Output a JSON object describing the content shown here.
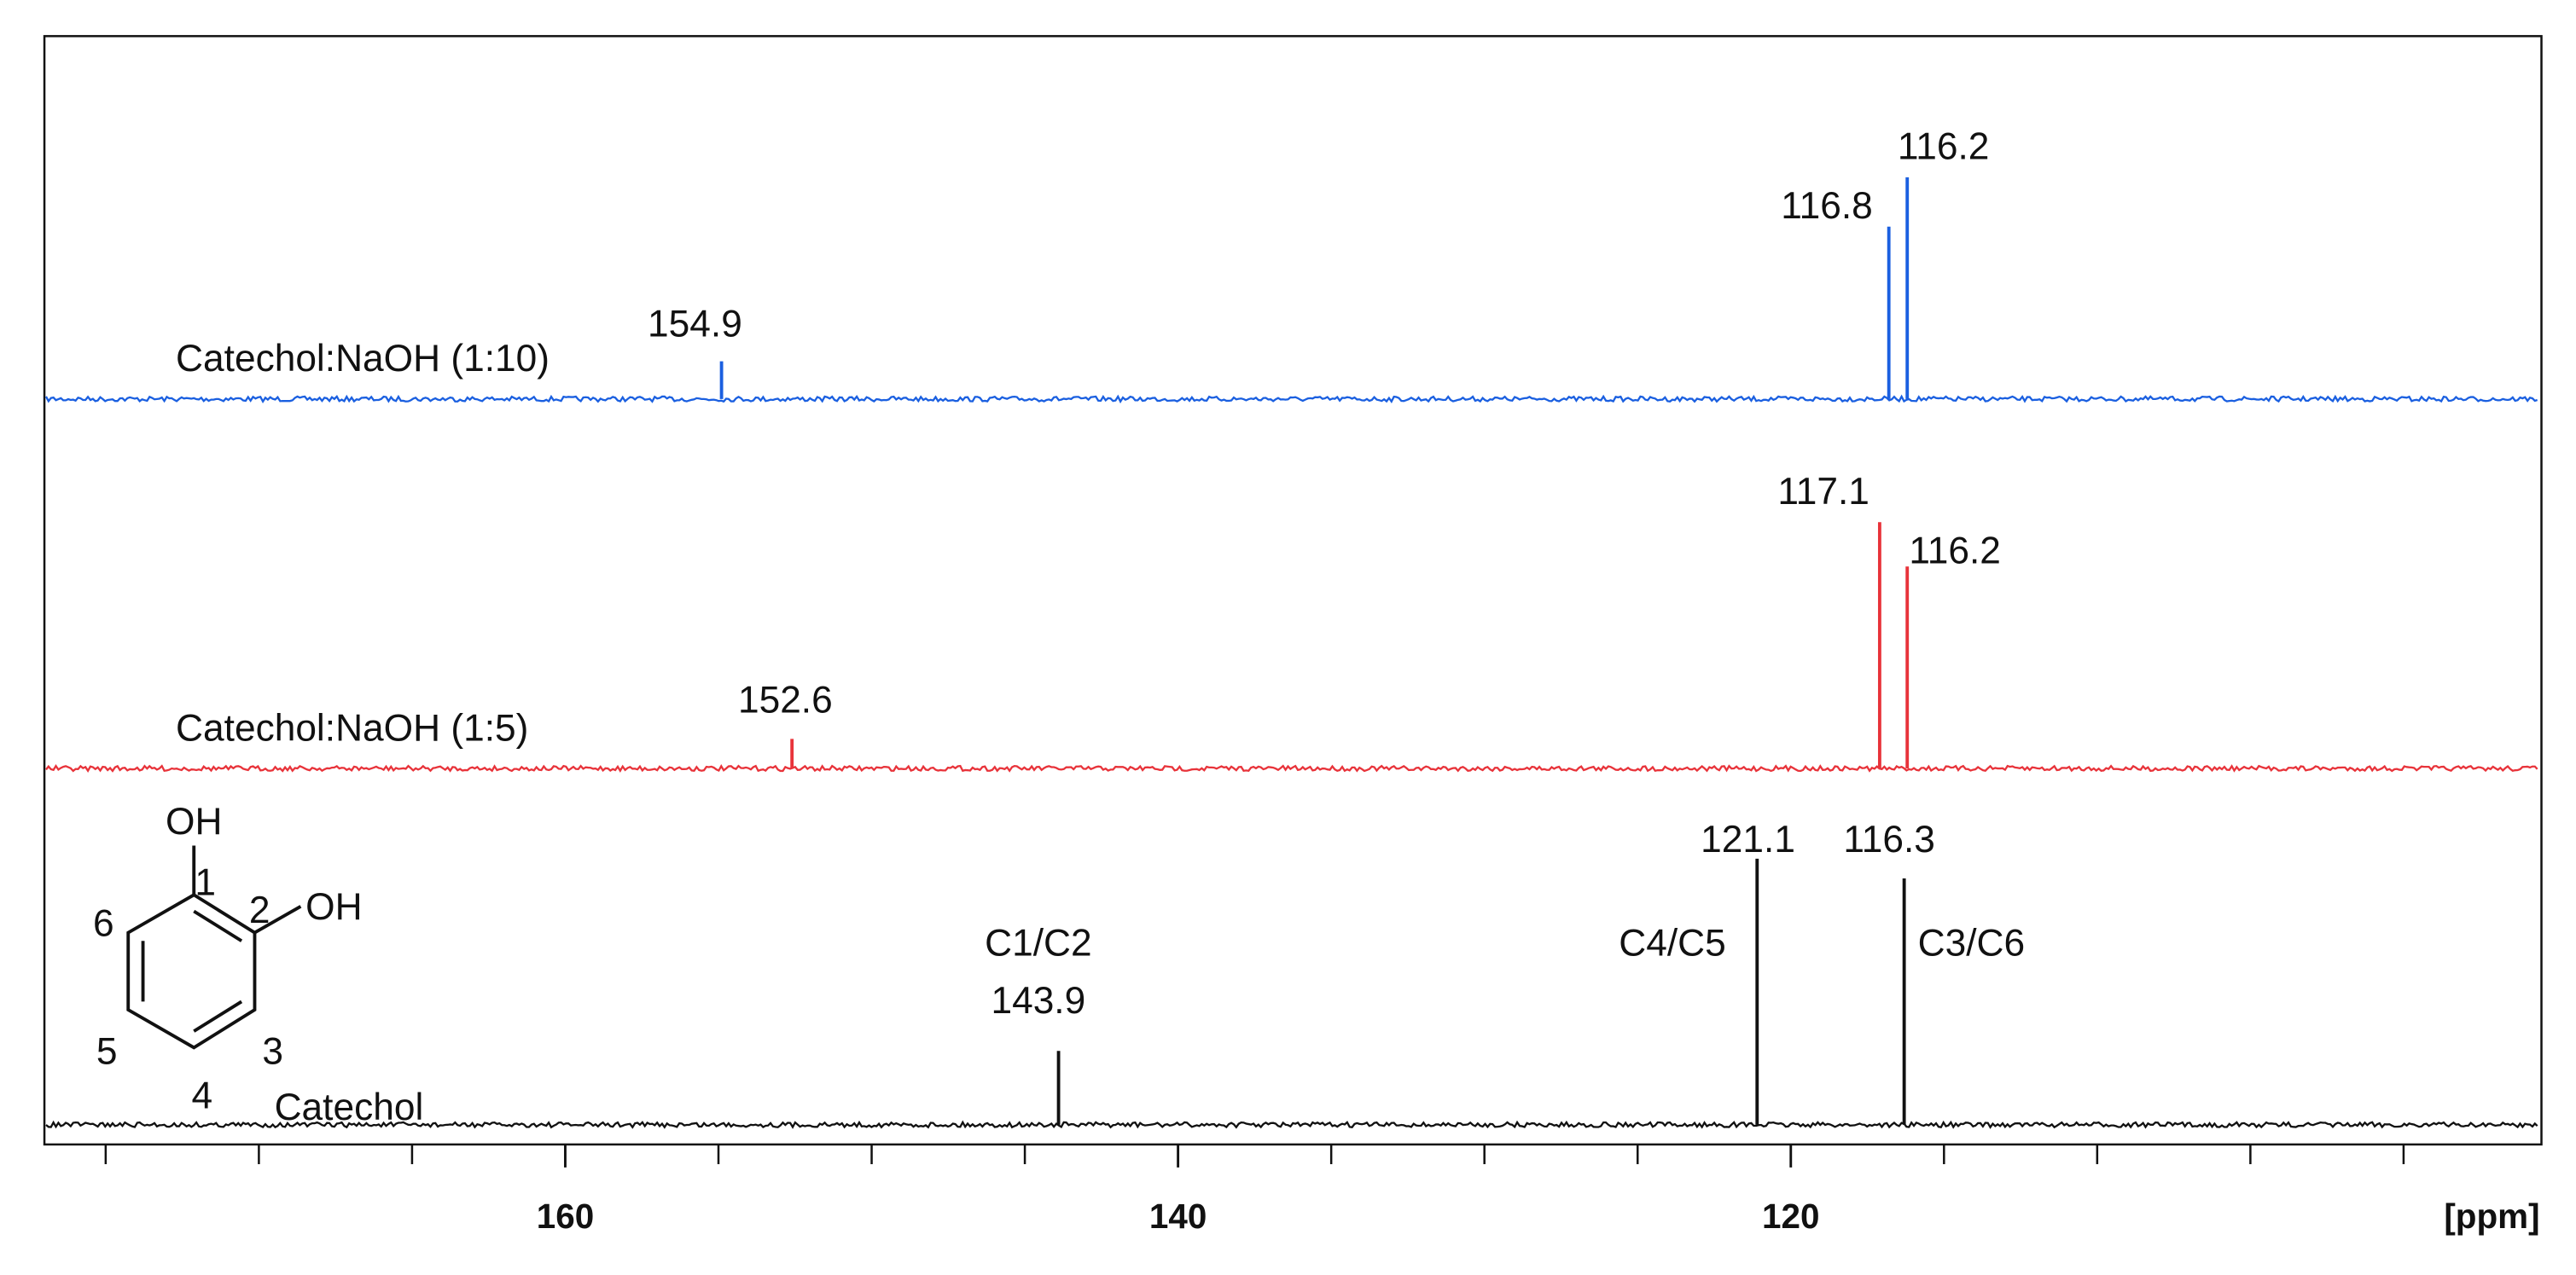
{
  "chart_data": {
    "type": "stick-spectrum",
    "x_unit_label": "[ppm]",
    "xlim": [
      177,
      95.5
    ],
    "xticks": [
      160,
      140,
      120
    ],
    "minor_xticks": [
      175,
      170,
      165,
      155,
      150,
      145,
      135,
      130,
      125,
      115,
      110,
      105,
      100
    ],
    "series": [
      {
        "name": "Catechol:NaOH (1:10)",
        "color": "#1a5fe0",
        "x": [
          154.9,
          116.8,
          116.2
        ],
        "values": [
          23,
          105,
          135
        ]
      },
      {
        "name": "Catechol:NaOH (1:5)",
        "color": "#e8333a",
        "x": [
          152.6,
          117.1,
          116.2
        ],
        "values": [
          18,
          150,
          123
        ]
      },
      {
        "name": "Catechol",
        "color": "#111111",
        "x": [
          143.9,
          121.1,
          116.3
        ],
        "values": [
          45,
          162,
          150
        ]
      }
    ],
    "annotations": [
      "C1/C2",
      "C4/C5",
      "C3/C6"
    ],
    "structure": {
      "substituents": [
        "OH",
        "OH"
      ],
      "positions": [
        "1",
        "2",
        "3",
        "4",
        "5",
        "6"
      ]
    }
  }
}
